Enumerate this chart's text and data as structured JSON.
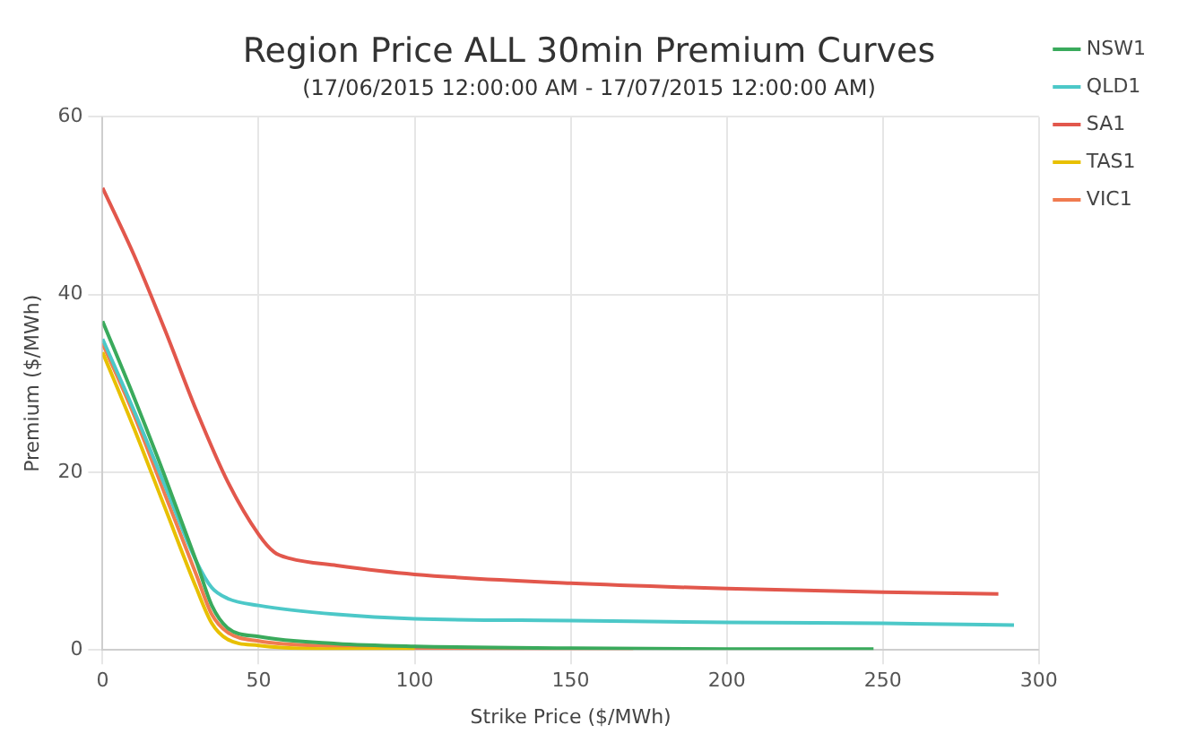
{
  "chart_data": {
    "type": "line",
    "title": "Region Price ALL 30min Premium Curves",
    "subtitle": "(17/06/2015 12:00:00 AM - 17/07/2015 12:00:00 AM)",
    "xlabel": "Strike Price ($/MWh)",
    "ylabel": "Premium ($/MWh)",
    "xlim": [
      0,
      300
    ],
    "xticks": [
      0,
      50,
      100,
      150,
      200,
      250,
      300
    ],
    "ylim": [
      0,
      60
    ],
    "yticks": [
      0,
      20,
      40,
      60
    ],
    "grid": true,
    "legend": "right",
    "marker": "none",
    "line_style": "solid",
    "series": [
      {
        "name": "NSW1",
        "color": "#3aaa5c",
        "x": [
          0,
          10,
          20,
          30,
          35,
          40,
          50,
          75,
          100,
          150,
          200,
          247
        ],
        "values": [
          37,
          28.5,
          19.5,
          10,
          5,
          2.5,
          1.5,
          0.7,
          0.4,
          0.2,
          0.1,
          0.1
        ]
      },
      {
        "name": "QLD1",
        "color": "#4cc8c8",
        "x": [
          0,
          10,
          20,
          30,
          35,
          40,
          50,
          75,
          100,
          150,
          200,
          250,
          292
        ],
        "values": [
          35,
          27,
          18.5,
          10,
          7,
          5.8,
          5,
          4,
          3.5,
          3.3,
          3.1,
          3,
          2.8
        ]
      },
      {
        "name": "SA1",
        "color": "#e2574c",
        "x": [
          0,
          10,
          20,
          30,
          40,
          50,
          55,
          60,
          75,
          100,
          150,
          200,
          250,
          287
        ],
        "values": [
          52,
          44.5,
          36,
          27,
          19,
          13,
          11,
          10.3,
          9.5,
          8.5,
          7.5,
          6.9,
          6.5,
          6.3
        ]
      },
      {
        "name": "TAS1",
        "color": "#e8c000",
        "x": [
          0,
          10,
          20,
          30,
          35,
          40,
          50,
          75,
          100
        ],
        "values": [
          33.5,
          25,
          16,
          7,
          3,
          1.2,
          0.5,
          0.1,
          0.1
        ]
      },
      {
        "name": "VIC1",
        "color": "#f07b50",
        "x": [
          0,
          10,
          20,
          30,
          35,
          40,
          50,
          75,
          100,
          170
        ],
        "values": [
          34.5,
          26.5,
          17.5,
          8.5,
          4,
          2,
          1,
          0.4,
          0.2,
          0.1
        ]
      }
    ]
  }
}
